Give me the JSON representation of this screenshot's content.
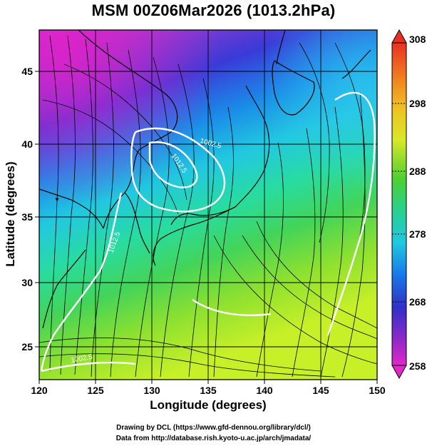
{
  "title": "MSM 00Z06Mar2026 (1013.2hPa)",
  "axes": {
    "xlabel": "Longitude (degrees)",
    "ylabel": "Latitude  (degrees)",
    "x_ticks": [
      "120",
      "125",
      "130",
      "135",
      "140",
      "145",
      "150"
    ],
    "y_ticks": [
      "25",
      "30",
      "35",
      "40",
      "45"
    ]
  },
  "colorbar": {
    "ticks": [
      "308",
      "298",
      "288",
      "278",
      "268",
      "258"
    ]
  },
  "contour_labels": [
    "1002.5",
    "1012.5",
    "1012.5",
    "1002.5"
  ],
  "credits": {
    "line1": "Drawing by DCL (https://www.gfd-dennou.org/library/dcl/)",
    "line2": "Data from http://database.rish.kyoto-u.ac.jp/arch/jmadata/"
  }
}
